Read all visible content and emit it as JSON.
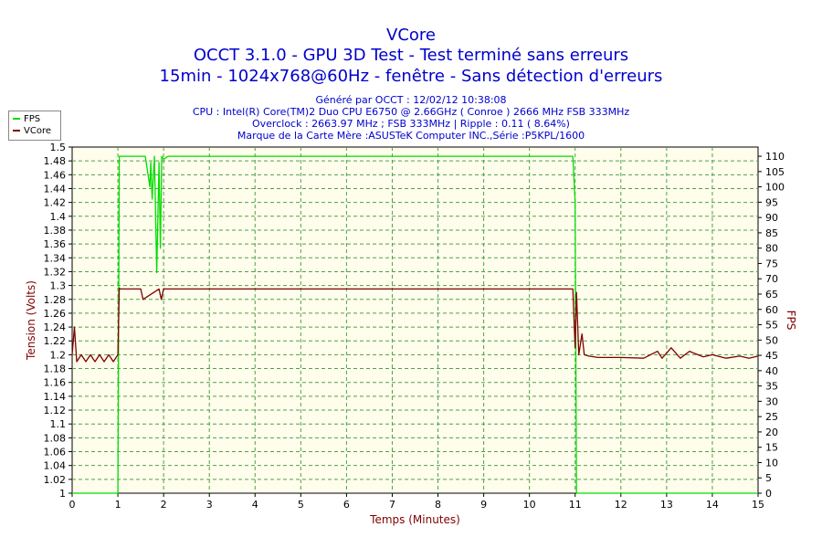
{
  "titles": {
    "line1": "VCore",
    "line2": "OCCT 3.1.0 - GPU 3D Test - Test terminé sans erreurs",
    "line3": "15min - 1024x768@60Hz - fenêtre - Sans détection d'erreurs"
  },
  "subtitles": {
    "generated": "Généré par OCCT : 12/02/12 10:38:08",
    "cpu": "CPU : Intel(R) Core(TM)2 Duo CPU E6750 @ 2.66GHz ( Conroe ) 2666 MHz FSB 333MHz",
    "overclock": "Overclock : 2663.97 MHz ; FSB 333MHz | Ripple : 0.11 ( 8.64%)",
    "motherboard": "Marque de la Carte Mère :ASUSTeK Computer INC.,Série :P5KPL/1600"
  },
  "colors": {
    "title": "#0000cc",
    "fps": "#00dd00",
    "vcore": "#800000",
    "plot_bg": "#fffdeb",
    "grid": "#50a050",
    "axis_label": "#800000"
  },
  "chart_data": {
    "type": "line",
    "xlabel": "Temps (Minutes)",
    "ylabel": "Tension (Volts)",
    "y2label": "FPS",
    "xlim": [
      0,
      15
    ],
    "ylim": [
      1.0,
      1.5
    ],
    "y2lim": [
      0,
      113
    ],
    "xticks": [
      "0",
      "1",
      "2",
      "3",
      "4",
      "5",
      "6",
      "7",
      "8",
      "9",
      "10",
      "11",
      "12",
      "13",
      "14",
      "15"
    ],
    "yticks": [
      "1",
      "1.02",
      "1.04",
      "1.06",
      "1.08",
      "1.1",
      "1.12",
      "1.14",
      "1.16",
      "1.18",
      "1.2",
      "1.22",
      "1.24",
      "1.26",
      "1.28",
      "1.3",
      "1.32",
      "1.34",
      "1.36",
      "1.38",
      "1.4",
      "1.42",
      "1.44",
      "1.46",
      "1.48",
      "1.5"
    ],
    "y2ticks": [
      "0",
      "5",
      "10",
      "15",
      "20",
      "25",
      "30",
      "35",
      "40",
      "45",
      "50",
      "55",
      "60",
      "65",
      "70",
      "75",
      "80",
      "85",
      "90",
      "95",
      "100",
      "105",
      "110"
    ],
    "grid": true,
    "legend": "outside-top-left",
    "series": [
      {
        "name": "FPS",
        "axis": "y2",
        "x": [
          0,
          1.0,
          1.03,
          1.07,
          1.6,
          1.7,
          1.72,
          1.75,
          1.8,
          1.85,
          1.9,
          1.93,
          1.96,
          2.0,
          2.1,
          3,
          4,
          5,
          6,
          7,
          8,
          9,
          10,
          10.95,
          11.0,
          11.03,
          15
        ],
        "values": [
          0,
          0,
          110,
          110,
          110,
          100,
          108,
          96,
          110,
          72,
          108,
          80,
          110,
          109,
          110,
          110,
          110,
          110,
          110,
          110,
          110,
          110,
          110,
          110,
          95,
          0,
          0
        ]
      },
      {
        "name": "VCore",
        "axis": "y1",
        "x": [
          0,
          0.05,
          0.1,
          0.2,
          0.3,
          0.4,
          0.5,
          0.6,
          0.7,
          0.8,
          0.9,
          1.0,
          1.03,
          1.06,
          1.5,
          1.55,
          1.9,
          1.95,
          2.0,
          3,
          4,
          5,
          6,
          7,
          8,
          9,
          10,
          10.95,
          11.0,
          11.03,
          11.08,
          11.15,
          11.2,
          11.3,
          11.5,
          12,
          12.5,
          12.8,
          12.9,
          13.1,
          13.3,
          13.5,
          13.8,
          14,
          14.3,
          14.6,
          14.8,
          15
        ],
        "values": [
          1.2,
          1.24,
          1.19,
          1.2,
          1.19,
          1.2,
          1.19,
          1.2,
          1.19,
          1.2,
          1.19,
          1.2,
          1.296,
          1.295,
          1.295,
          1.28,
          1.295,
          1.28,
          1.295,
          1.295,
          1.295,
          1.295,
          1.295,
          1.295,
          1.295,
          1.295,
          1.295,
          1.295,
          1.21,
          1.29,
          1.2,
          1.23,
          1.2,
          1.198,
          1.196,
          1.196,
          1.195,
          1.205,
          1.195,
          1.21,
          1.195,
          1.205,
          1.197,
          1.2,
          1.195,
          1.198,
          1.195,
          1.198
        ]
      }
    ]
  }
}
